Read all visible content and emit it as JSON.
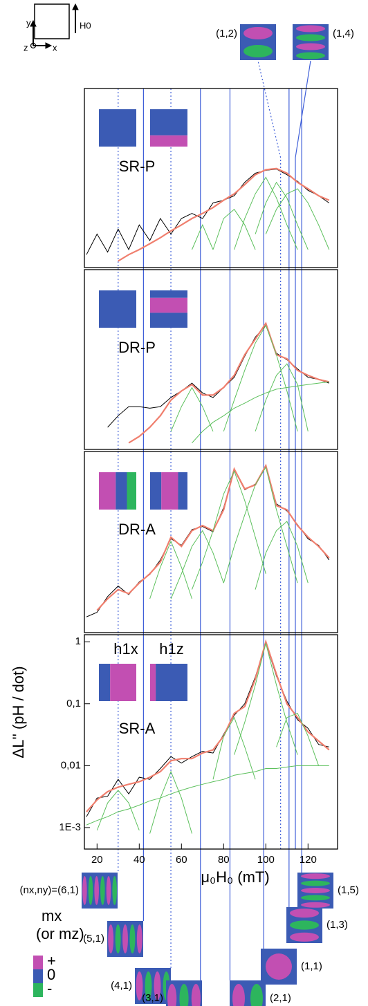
{
  "chart_data": [
    {
      "type": "line",
      "label": "SR-P",
      "scale": "log",
      "ylim": [
        0.00045,
        1.3
      ],
      "x": [
        15,
        20,
        25,
        30,
        35,
        40,
        45,
        50,
        55,
        60,
        65,
        70,
        75,
        80,
        85,
        90,
        95,
        100,
        105,
        110,
        115,
        120,
        125,
        130
      ],
      "series": [
        {
          "color": "#000000",
          "values": [
            0.0008,
            0.002,
            0.0009,
            0.0025,
            0.001,
            0.003,
            0.0015,
            0.004,
            0.002,
            0.004,
            0.005,
            0.004,
            0.008,
            0.009,
            0.011,
            0.02,
            0.03,
            0.034,
            0.036,
            0.028,
            0.021,
            0.014,
            0.011,
            0.008
          ]
        },
        {
          "color": "#f07f6e",
          "values": [
            null,
            null,
            null,
            0.0006,
            0.0008,
            0.001,
            0.0013,
            0.0017,
            0.0023,
            0.003,
            0.004,
            0.005,
            0.0065,
            0.009,
            0.012,
            0.018,
            0.028,
            0.035,
            0.037,
            0.03,
            0.02,
            0.015,
            0.011,
            0.009
          ]
        },
        {
          "color": "#5cc05c",
          "values": [
            null,
            null,
            null,
            null,
            null,
            null,
            null,
            null,
            null,
            null,
            0.001,
            0.003,
            0.001,
            null,
            null,
            null,
            null,
            null,
            null,
            null,
            null,
            null,
            null,
            null
          ]
        },
        {
          "color": "#5cc05c",
          "values": [
            null,
            null,
            null,
            null,
            null,
            null,
            null,
            null,
            null,
            null,
            null,
            null,
            0.001,
            0.004,
            0.006,
            0.003,
            0.001,
            null,
            null,
            null,
            null,
            null,
            null,
            null
          ]
        },
        {
          "color": "#5cc05c",
          "values": [
            null,
            null,
            null,
            null,
            null,
            null,
            null,
            null,
            null,
            null,
            null,
            null,
            null,
            null,
            0.001,
            0.004,
            0.012,
            0.025,
            0.01,
            0.003,
            0.001,
            null,
            null,
            null
          ]
        },
        {
          "color": "#5cc05c",
          "values": [
            null,
            null,
            null,
            null,
            null,
            null,
            null,
            null,
            null,
            null,
            null,
            null,
            null,
            null,
            null,
            null,
            0.002,
            0.008,
            0.02,
            0.01,
            0.003,
            0.001,
            null,
            null
          ]
        },
        {
          "color": "#5cc05c",
          "values": [
            null,
            null,
            null,
            null,
            null,
            null,
            null,
            null,
            null,
            null,
            null,
            null,
            null,
            null,
            null,
            null,
            null,
            0.002,
            0.006,
            0.012,
            0.015,
            0.008,
            0.003,
            0.001
          ]
        }
      ]
    },
    {
      "type": "line",
      "label": "DR-P",
      "scale": "log",
      "ylim": [
        0.00045,
        1.3
      ],
      "x": [
        15,
        20,
        25,
        30,
        35,
        40,
        45,
        50,
        55,
        60,
        65,
        70,
        75,
        80,
        85,
        90,
        95,
        100,
        105,
        110,
        115,
        120,
        125,
        130
      ],
      "series": [
        {
          "color": "#000000",
          "values": [
            null,
            null,
            0.0012,
            0.002,
            0.003,
            0.003,
            0.0028,
            0.003,
            0.0045,
            0.006,
            0.0085,
            0.0055,
            0.0045,
            0.007,
            0.011,
            0.028,
            0.065,
            0.11,
            0.032,
            0.024,
            0.016,
            0.011,
            0.01,
            0.0085
          ]
        },
        {
          "color": "#f07f6e",
          "values": [
            null,
            null,
            null,
            null,
            0.0006,
            0.0008,
            0.0012,
            0.002,
            0.004,
            0.006,
            0.008,
            0.005,
            0.005,
            0.007,
            0.012,
            0.03,
            0.06,
            0.12,
            0.03,
            0.025,
            0.015,
            0.012,
            0.01,
            0.009
          ]
        },
        {
          "color": "#5cc05c",
          "values": [
            null,
            null,
            null,
            null,
            null,
            null,
            null,
            null,
            0.001,
            0.003,
            0.007,
            0.003,
            0.001,
            null,
            null,
            null,
            null,
            null,
            null,
            null,
            null,
            null,
            null,
            null
          ]
        },
        {
          "color": "#5cc05c",
          "values": [
            null,
            null,
            null,
            null,
            null,
            null,
            null,
            null,
            null,
            null,
            null,
            null,
            null,
            0.001,
            0.004,
            0.015,
            0.05,
            0.11,
            0.03,
            0.006,
            0.001,
            null,
            null,
            null
          ]
        },
        {
          "color": "#5cc05c",
          "values": [
            null,
            null,
            null,
            null,
            null,
            null,
            null,
            null,
            null,
            null,
            null,
            null,
            null,
            null,
            null,
            null,
            0.001,
            0.004,
            0.012,
            0.02,
            0.008,
            0.001,
            null,
            null
          ]
        },
        {
          "color": "#5cc05c",
          "values": [
            null,
            null,
            null,
            null,
            null,
            null,
            null,
            null,
            null,
            null,
            0.0006,
            0.001,
            0.0015,
            0.002,
            0.0028,
            0.0035,
            0.0045,
            0.0055,
            0.0065,
            0.007,
            0.0075,
            0.008,
            0.0085,
            0.009
          ]
        }
      ]
    },
    {
      "type": "line",
      "label": "DR-A",
      "scale": "log",
      "ylim": [
        0.00045,
        1.3
      ],
      "x": [
        15,
        20,
        25,
        30,
        35,
        40,
        45,
        50,
        55,
        60,
        65,
        70,
        75,
        80,
        85,
        90,
        95,
        100,
        105,
        110,
        115,
        120,
        125,
        130
      ],
      "series": [
        {
          "color": "#000000",
          "values": [
            0.0009,
            0.0011,
            0.0022,
            0.0035,
            0.0024,
            0.0042,
            0.0058,
            0.011,
            0.028,
            0.021,
            0.042,
            0.048,
            0.038,
            0.11,
            0.58,
            0.24,
            0.31,
            0.68,
            0.13,
            0.095,
            0.052,
            0.028,
            0.021,
            0.011
          ]
        },
        {
          "color": "#f07f6e",
          "values": [
            null,
            0.0012,
            0.002,
            0.003,
            0.0025,
            0.004,
            0.006,
            0.01,
            0.03,
            0.02,
            0.04,
            0.05,
            0.04,
            0.1,
            0.6,
            0.25,
            0.3,
            0.7,
            0.12,
            0.1,
            0.05,
            0.03,
            0.02,
            0.012
          ]
        },
        {
          "color": "#5cc05c",
          "values": [
            null,
            null,
            null,
            null,
            null,
            null,
            0.002,
            0.008,
            0.025,
            0.008,
            0.002,
            null,
            null,
            null,
            null,
            null,
            null,
            null,
            null,
            null,
            null,
            null,
            null,
            null
          ]
        },
        {
          "color": "#5cc05c",
          "values": [
            null,
            null,
            null,
            null,
            null,
            null,
            null,
            null,
            0.002,
            0.006,
            0.02,
            0.04,
            0.015,
            0.004,
            null,
            null,
            null,
            null,
            null,
            null,
            null,
            null,
            null,
            null
          ]
        },
        {
          "color": "#5cc05c",
          "values": [
            null,
            null,
            null,
            null,
            null,
            null,
            null,
            null,
            null,
            null,
            0.003,
            0.01,
            0.04,
            0.2,
            0.55,
            0.15,
            0.03,
            0.006,
            null,
            null,
            null,
            null,
            null,
            null
          ]
        },
        {
          "color": "#5cc05c",
          "values": [
            null,
            null,
            null,
            null,
            null,
            null,
            null,
            null,
            null,
            null,
            null,
            null,
            null,
            0.004,
            0.02,
            0.08,
            0.3,
            0.65,
            0.1,
            0.02,
            0.004,
            null,
            null,
            null
          ]
        },
        {
          "color": "#5cc05c",
          "values": [
            null,
            null,
            null,
            null,
            null,
            null,
            null,
            null,
            null,
            null,
            null,
            null,
            null,
            null,
            null,
            null,
            0.003,
            0.015,
            0.04,
            0.06,
            0.02,
            0.004,
            null,
            null
          ]
        }
      ]
    },
    {
      "type": "line",
      "label": "SR-A",
      "scale": "log",
      "ylim": [
        0.00045,
        1.3
      ],
      "yticks": [
        {
          "value": 0.001,
          "label": "1E-3"
        },
        {
          "value": 0.01,
          "label": "0,01"
        },
        {
          "value": 0.1,
          "label": "0,1"
        },
        1
      ],
      "xlim": [
        14,
        134
      ],
      "xticks": [
        20,
        40,
        60,
        80,
        100,
        120
      ],
      "xlabel": "μ₀H₀ (mT)",
      "ylabel": "ΔL'' (pH / dot)",
      "annotations": [
        "h1x",
        "h1z"
      ],
      "x": [
        15,
        20,
        25,
        30,
        35,
        40,
        45,
        50,
        55,
        60,
        65,
        70,
        75,
        80,
        85,
        90,
        95,
        100,
        105,
        110,
        115,
        120,
        125,
        130
      ],
      "series": [
        {
          "color": "#000000",
          "values": [
            0.0015,
            0.003,
            0.0032,
            0.006,
            0.0035,
            0.0065,
            0.006,
            0.009,
            0.014,
            0.011,
            0.014,
            0.017,
            0.016,
            0.032,
            0.065,
            0.1,
            0.27,
            0.95,
            0.28,
            0.11,
            0.055,
            0.04,
            0.022,
            0.02
          ]
        },
        {
          "color": "#f07f6e",
          "values": [
            0.0018,
            0.0028,
            0.0038,
            0.0045,
            0.005,
            0.0055,
            0.0065,
            0.008,
            0.012,
            0.013,
            0.013,
            0.016,
            0.018,
            0.03,
            0.07,
            0.09,
            0.25,
            1,
            0.3,
            0.1,
            0.06,
            0.035,
            0.025,
            0.018
          ]
        },
        {
          "color": "#5cc05c",
          "values": [
            null,
            0.0009,
            0.0025,
            0.004,
            0.0025,
            0.0009,
            null,
            null,
            null,
            null,
            null,
            null,
            null,
            null,
            null,
            null,
            null,
            null,
            null,
            null,
            null,
            null,
            null,
            null
          ]
        },
        {
          "color": "#5cc05c",
          "values": [
            null,
            null,
            null,
            null,
            null,
            null,
            0.0008,
            0.003,
            0.008,
            0.003,
            0.0008,
            null,
            null,
            null,
            null,
            null,
            null,
            null,
            null,
            null,
            null,
            null,
            null,
            null
          ]
        },
        {
          "color": "#5cc05c",
          "values": [
            null,
            null,
            null,
            null,
            null,
            null,
            null,
            null,
            null,
            null,
            null,
            null,
            0.006,
            0.03,
            0.06,
            0.02,
            0.006,
            null,
            null,
            null,
            null,
            null,
            null,
            null
          ]
        },
        {
          "color": "#5cc05c",
          "values": [
            null,
            null,
            null,
            null,
            null,
            null,
            null,
            null,
            null,
            null,
            null,
            null,
            null,
            null,
            0.015,
            0.05,
            0.2,
            0.95,
            0.2,
            0.05,
            0.015,
            null,
            null,
            null
          ]
        },
        {
          "color": "#5cc05c",
          "values": [
            null,
            null,
            null,
            null,
            null,
            null,
            null,
            null,
            null,
            null,
            null,
            null,
            null,
            null,
            null,
            null,
            null,
            null,
            0.02,
            0.06,
            0.07,
            0.03,
            0.01,
            null
          ]
        },
        {
          "color": "#5cc05c",
          "values": [
            0.0011,
            0.0013,
            0.0015,
            0.0018,
            0.002,
            0.0023,
            0.0027,
            0.003,
            0.0035,
            0.004,
            0.0045,
            0.005,
            0.0055,
            0.006,
            0.007,
            0.0075,
            0.008,
            0.009,
            0.009,
            0.0095,
            0.01,
            0.01,
            0.01,
            0.01
          ]
        }
      ]
    }
  ],
  "modes": [
    {
      "label": "(nx,ny)=(6,1)",
      "field": 30,
      "dotted": true
    },
    {
      "label": "(5,1)",
      "field": 42,
      "dotted": false
    },
    {
      "label": "(4,1)",
      "field": 55,
      "dotted": true
    },
    {
      "label": "(3,1)",
      "field": 69,
      "dotted": false
    },
    {
      "label": "(2,1)",
      "field": 83,
      "dotted": false
    },
    {
      "label": "(1,1)",
      "field": 99,
      "dotted": false
    },
    {
      "label": "(1,2)",
      "field": 107,
      "dotted": true
    },
    {
      "label": "(1,3)",
      "field": 111,
      "dotted": false
    },
    {
      "label": "(1,4)",
      "field": 114,
      "dotted": false
    },
    {
      "label": "(1,5)",
      "field": 117,
      "dotted": false
    }
  ],
  "legend": {
    "title": "mx",
    "subtitle": "(or mz)",
    "items": [
      {
        "label": "+",
        "color": "#c24fb2"
      },
      {
        "label": "0",
        "color": "#3b5bb4"
      },
      {
        "label": "-",
        "color": "#2db55d"
      }
    ]
  },
  "axes_icon": {
    "y": "y",
    "x": "x",
    "z": "z",
    "field": "H0"
  }
}
